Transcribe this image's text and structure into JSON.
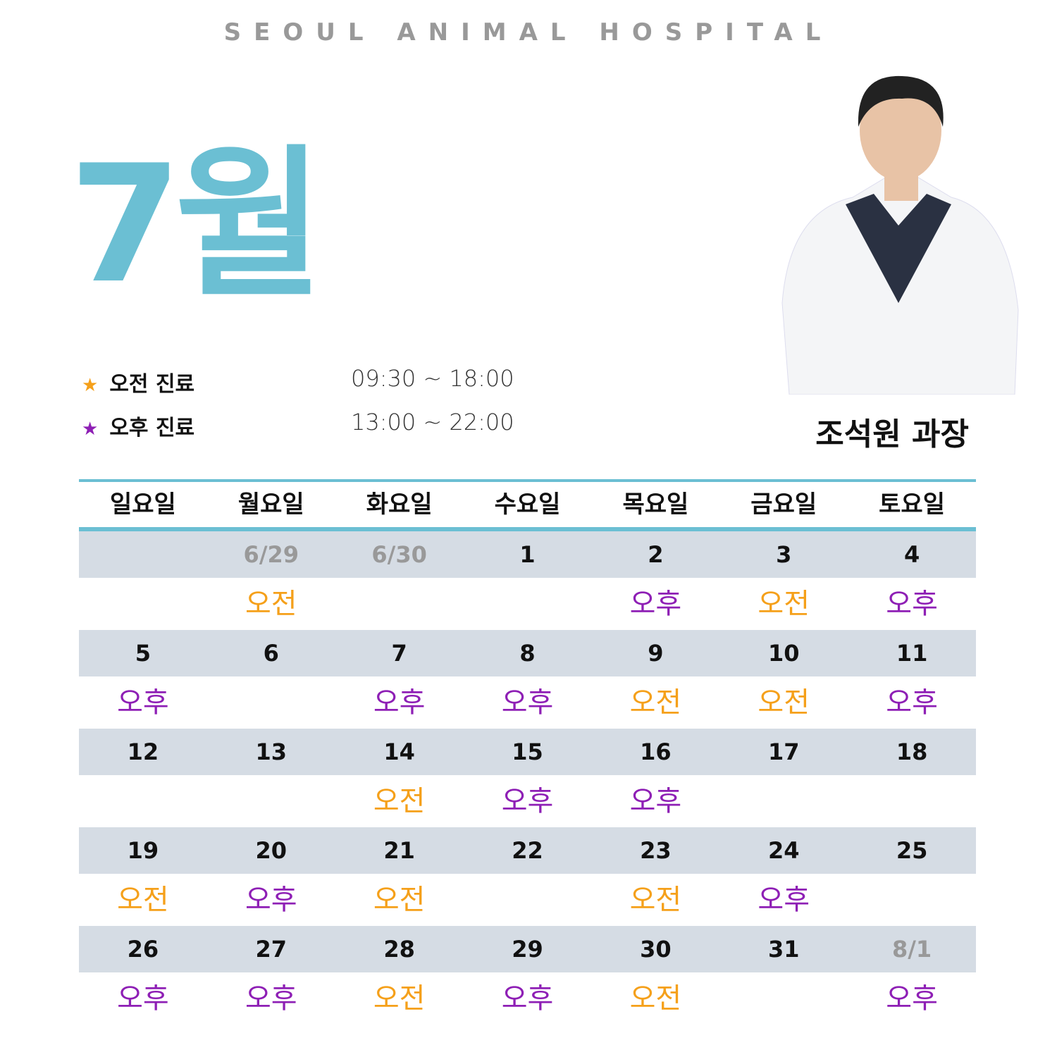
{
  "header": {
    "brand": "SEOUL ANIMAL HOSPITAL",
    "month": "7월"
  },
  "legend": [
    {
      "marker": "★",
      "label": "오전 진료",
      "hours": "09:30 ~ 18:00",
      "color": "#f5a01a"
    },
    {
      "marker": "★",
      "label": "오후 진료",
      "hours": "13:00 ~ 22:00",
      "color": "#8e1fb5"
    }
  ],
  "doctor": {
    "name": "조석원 과장"
  },
  "calendar": {
    "weekdays": [
      "일요일",
      "월요일",
      "화요일",
      "수요일",
      "목요일",
      "금요일",
      "토요일"
    ],
    "weeks": [
      [
        {
          "date": null,
          "shift": null
        },
        {
          "date": "6/29",
          "shift": "오전"
        },
        {
          "date": "6/30",
          "shift": null
        },
        {
          "date": "1",
          "shift": null
        },
        {
          "date": "2",
          "shift": "오후"
        },
        {
          "date": "3",
          "shift": "오전"
        },
        {
          "date": "4",
          "shift": "오후"
        }
      ],
      [
        {
          "date": "5",
          "shift": "오후"
        },
        {
          "date": "6",
          "shift": null
        },
        {
          "date": "7",
          "shift": "오후"
        },
        {
          "date": "8",
          "shift": "오후"
        },
        {
          "date": "9",
          "shift": "오전"
        },
        {
          "date": "10",
          "shift": "오전"
        },
        {
          "date": "11",
          "shift": "오후"
        }
      ],
      [
        {
          "date": "12",
          "shift": null
        },
        {
          "date": "13",
          "shift": null
        },
        {
          "date": "14",
          "shift": "오전"
        },
        {
          "date": "15",
          "shift": "오후"
        },
        {
          "date": "16",
          "shift": "오후"
        },
        {
          "date": "17",
          "shift": null
        },
        {
          "date": "18",
          "shift": null
        }
      ],
      [
        {
          "date": "19",
          "shift": "오전"
        },
        {
          "date": "20",
          "shift": "오후"
        },
        {
          "date": "21",
          "shift": "오전"
        },
        {
          "date": "22",
          "shift": null
        },
        {
          "date": "23",
          "shift": "오전"
        },
        {
          "date": "24",
          "shift": "오후"
        },
        {
          "date": "25",
          "shift": null
        }
      ],
      [
        {
          "date": "26",
          "shift": "오후"
        },
        {
          "date": "27",
          "shift": "오후"
        },
        {
          "date": "28",
          "shift": "오전"
        },
        {
          "date": "29",
          "shift": "오후"
        },
        {
          "date": "30",
          "shift": "오전"
        },
        {
          "date": "31",
          "shift": null
        },
        {
          "date": "8/1",
          "shift": "오후"
        }
      ]
    ]
  }
}
